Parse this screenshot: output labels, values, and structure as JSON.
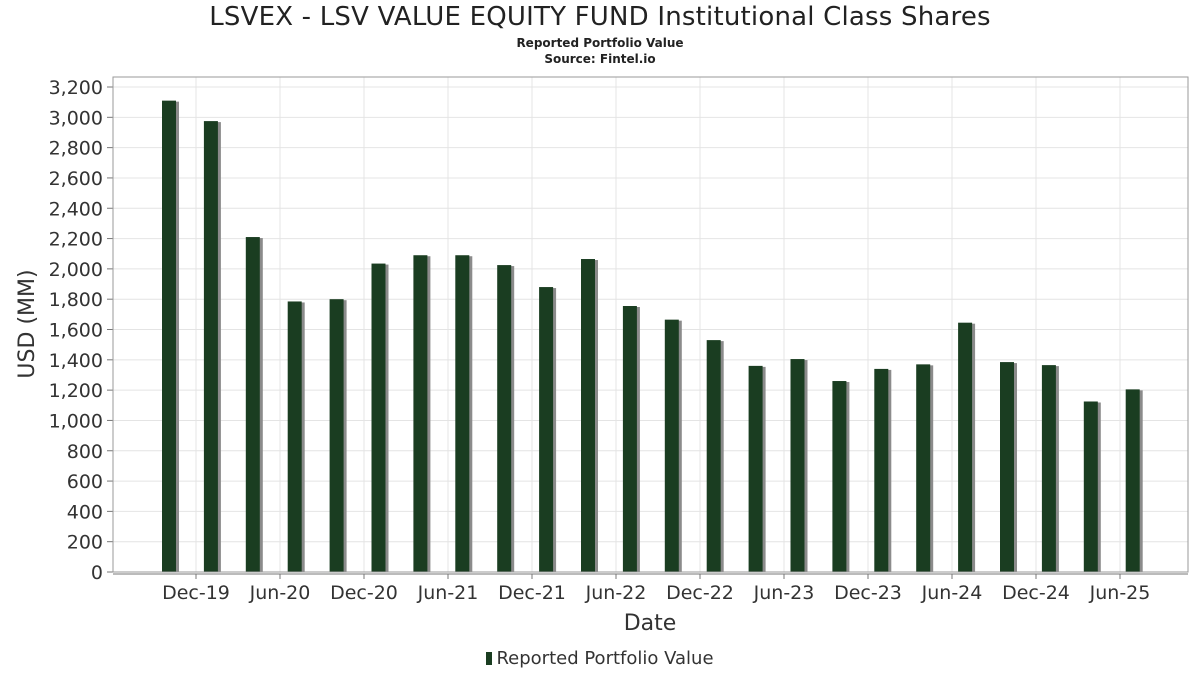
{
  "chart_data": {
    "type": "bar",
    "title": "LSVEX - LSV VALUE EQUITY FUND Institutional Class Shares",
    "subtitle_lines": [
      "Reported Portfolio Value",
      "Source: Fintel.io"
    ],
    "xlabel": "Date",
    "ylabel": "USD (MM)",
    "ylim": [
      0,
      3250
    ],
    "yticks": [
      0,
      200,
      400,
      600,
      800,
      1000,
      1200,
      1400,
      1600,
      1800,
      2000,
      2200,
      2400,
      2600,
      2800,
      3000,
      3200
    ],
    "xtick_labels": [
      "Dec-19",
      "Jun-20",
      "Dec-20",
      "Jun-21",
      "Dec-21",
      "Jun-22",
      "Dec-22",
      "Jun-23",
      "Dec-23",
      "Jun-24",
      "Dec-24",
      "Jun-25"
    ],
    "grid": true,
    "legend_position": "bottom",
    "series": [
      {
        "name": "Reported Portfolio Value",
        "color": "#1a3d21",
        "values": [
          3110,
          2975,
          2210,
          1785,
          1800,
          2035,
          2090,
          2090,
          2025,
          1880,
          2065,
          1755,
          1665,
          1530,
          1360,
          1405,
          1260,
          1340,
          1370,
          1645,
          1385,
          1365,
          1125,
          1205
        ]
      }
    ]
  }
}
